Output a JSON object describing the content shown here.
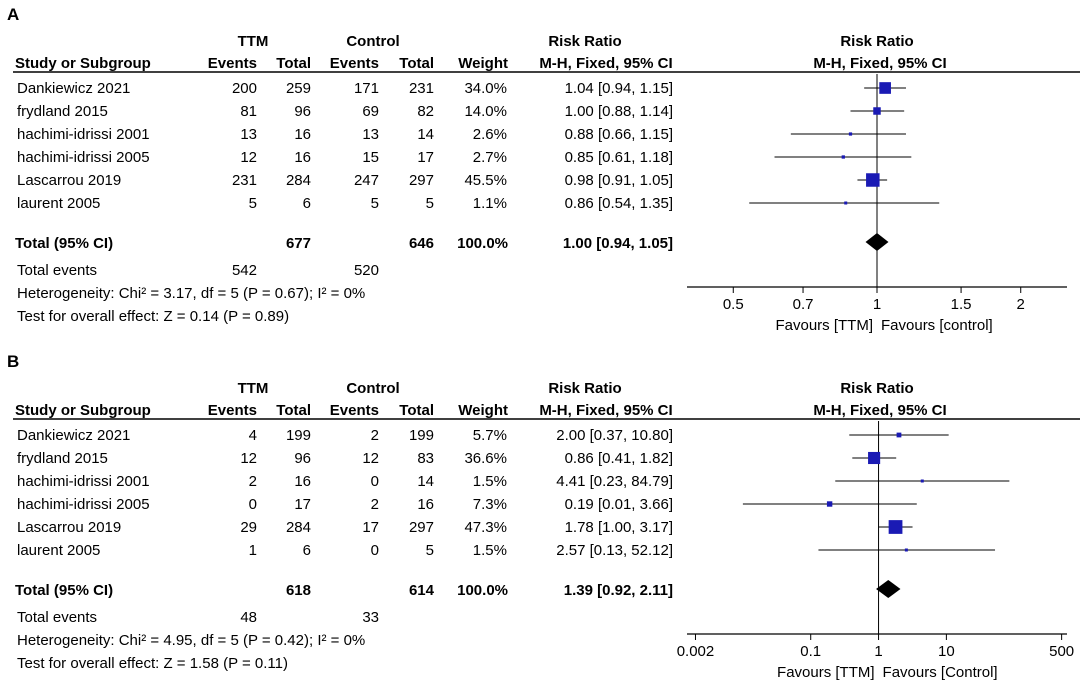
{
  "chart_data": [
    {
      "type": "forest",
      "panel_label": "A",
      "headers": {
        "study": "Study or Subgroup",
        "group1": "TTM",
        "group2": "Control",
        "events": "Events",
        "total": "Total",
        "weight": "Weight",
        "rr": "Risk Ratio",
        "rr_method": "M-H, Fixed, 95% CI"
      },
      "studies": [
        {
          "name": "Dankiewicz 2021",
          "e1": "200",
          "n1": "259",
          "e2": "171",
          "n2": "231",
          "weight": "34.0%",
          "ci_text": "1.04 [0.94, 1.15]",
          "rr": 1.04,
          "lo": 0.94,
          "hi": 1.15,
          "w": 34.0
        },
        {
          "name": "frydland 2015",
          "e1": "81",
          "n1": "96",
          "e2": "69",
          "n2": "82",
          "weight": "14.0%",
          "ci_text": "1.00 [0.88, 1.14]",
          "rr": 1.0,
          "lo": 0.88,
          "hi": 1.14,
          "w": 14.0
        },
        {
          "name": "hachimi-idrissi 2001",
          "e1": "13",
          "n1": "16",
          "e2": "13",
          "n2": "14",
          "weight": "2.6%",
          "ci_text": "0.88 [0.66, 1.15]",
          "rr": 0.88,
          "lo": 0.66,
          "hi": 1.15,
          "w": 2.6
        },
        {
          "name": "hachimi-idrissi 2005",
          "e1": "12",
          "n1": "16",
          "e2": "15",
          "n2": "17",
          "weight": "2.7%",
          "ci_text": "0.85 [0.61, 1.18]",
          "rr": 0.85,
          "lo": 0.61,
          "hi": 1.18,
          "w": 2.7
        },
        {
          "name": "Lascarrou 2019",
          "e1": "231",
          "n1": "284",
          "e2": "247",
          "n2": "297",
          "weight": "45.5%",
          "ci_text": "0.98 [0.91, 1.05]",
          "rr": 0.98,
          "lo": 0.91,
          "hi": 1.05,
          "w": 45.5
        },
        {
          "name": "laurent 2005",
          "e1": "5",
          "n1": "6",
          "e2": "5",
          "n2": "5",
          "weight": "1.1%",
          "ci_text": "0.86 [0.54, 1.35]",
          "rr": 0.86,
          "lo": 0.54,
          "hi": 1.35,
          "w": 1.1
        }
      ],
      "total": {
        "label": "Total (95% CI)",
        "n1": "677",
        "n2": "646",
        "weight": "100.0%",
        "ci_text": "1.00 [0.94, 1.05]",
        "rr": 1.0,
        "lo": 0.94,
        "hi": 1.05
      },
      "total_events": {
        "label": "Total events",
        "e1": "542",
        "e2": "520"
      },
      "heterogeneity": "Heterogeneity: Chi² = 3.17, df = 5 (P = 0.67); I² = 0%",
      "overall_effect": "Test for overall effect: Z = 0.14 (P = 0.89)",
      "axis": {
        "scale": "log",
        "range": [
          0.4,
          2.5
        ],
        "ticks": [
          "0.5",
          "0.7",
          "1",
          "1.5",
          "2"
        ],
        "tick_values": [
          0.5,
          0.7,
          1,
          1.5,
          2
        ]
      },
      "favours_left": "Favours [TTM]",
      "favours_right": "Favours [control]"
    },
    {
      "type": "forest",
      "panel_label": "B",
      "headers": {
        "study": "Study or Subgroup",
        "group1": "TTM",
        "group2": "Control",
        "events": "Events",
        "total": "Total",
        "weight": "Weight",
        "rr": "Risk Ratio",
        "rr_method": "M-H, Fixed, 95% CI"
      },
      "studies": [
        {
          "name": "Dankiewicz 2021",
          "e1": "4",
          "n1": "199",
          "e2": "2",
          "n2": "199",
          "weight": "5.7%",
          "ci_text": "2.00 [0.37, 10.80]",
          "rr": 2.0,
          "lo": 0.37,
          "hi": 10.8,
          "w": 5.7
        },
        {
          "name": "frydland 2015",
          "e1": "12",
          "n1": "96",
          "e2": "12",
          "n2": "83",
          "weight": "36.6%",
          "ci_text": "0.86 [0.41, 1.82]",
          "rr": 0.86,
          "lo": 0.41,
          "hi": 1.82,
          "w": 36.6
        },
        {
          "name": "hachimi-idrissi 2001",
          "e1": "2",
          "n1": "16",
          "e2": "0",
          "n2": "14",
          "weight": "1.5%",
          "ci_text": "4.41 [0.23, 84.79]",
          "rr": 4.41,
          "lo": 0.23,
          "hi": 84.79,
          "w": 1.5
        },
        {
          "name": "hachimi-idrissi 2005",
          "e1": "0",
          "n1": "17",
          "e2": "2",
          "n2": "16",
          "weight": "7.3%",
          "ci_text": "0.19 [0.01, 3.66]",
          "rr": 0.19,
          "lo": 0.01,
          "hi": 3.66,
          "w": 7.3
        },
        {
          "name": "Lascarrou 2019",
          "e1": "29",
          "n1": "284",
          "e2": "17",
          "n2": "297",
          "weight": "47.3%",
          "ci_text": "1.78 [1.00, 3.17]",
          "rr": 1.78,
          "lo": 1.0,
          "hi": 3.17,
          "w": 47.3
        },
        {
          "name": "laurent 2005",
          "e1": "1",
          "n1": "6",
          "e2": "0",
          "n2": "5",
          "weight": "1.5%",
          "ci_text": "2.57 [0.13, 52.12]",
          "rr": 2.57,
          "lo": 0.13,
          "hi": 52.12,
          "w": 1.5
        }
      ],
      "total": {
        "label": "Total (95% CI)",
        "n1": "618",
        "n2": "614",
        "weight": "100.0%",
        "ci_text": "1.39 [0.92, 2.11]",
        "rr": 1.39,
        "lo": 0.92,
        "hi": 2.11
      },
      "total_events": {
        "label": "Total events",
        "e1": "48",
        "e2": "33"
      },
      "heterogeneity": "Heterogeneity: Chi² = 4.95, df = 5 (P = 0.42); I² = 0%",
      "overall_effect": "Test for overall effect: Z = 1.58 (P = 0.11)",
      "axis": {
        "scale": "log",
        "range": [
          0.0015,
          600
        ],
        "ticks": [
          "0.002",
          "0.1",
          "1",
          "10",
          "500"
        ],
        "tick_values": [
          0.002,
          0.1,
          1,
          10,
          500
        ]
      },
      "favours_left": "Favours [TTM]",
      "favours_right": "Favours [Control]"
    }
  ],
  "colors": {
    "marker": "#1a1ab4",
    "diamond": "#000000",
    "line": "#000000"
  }
}
